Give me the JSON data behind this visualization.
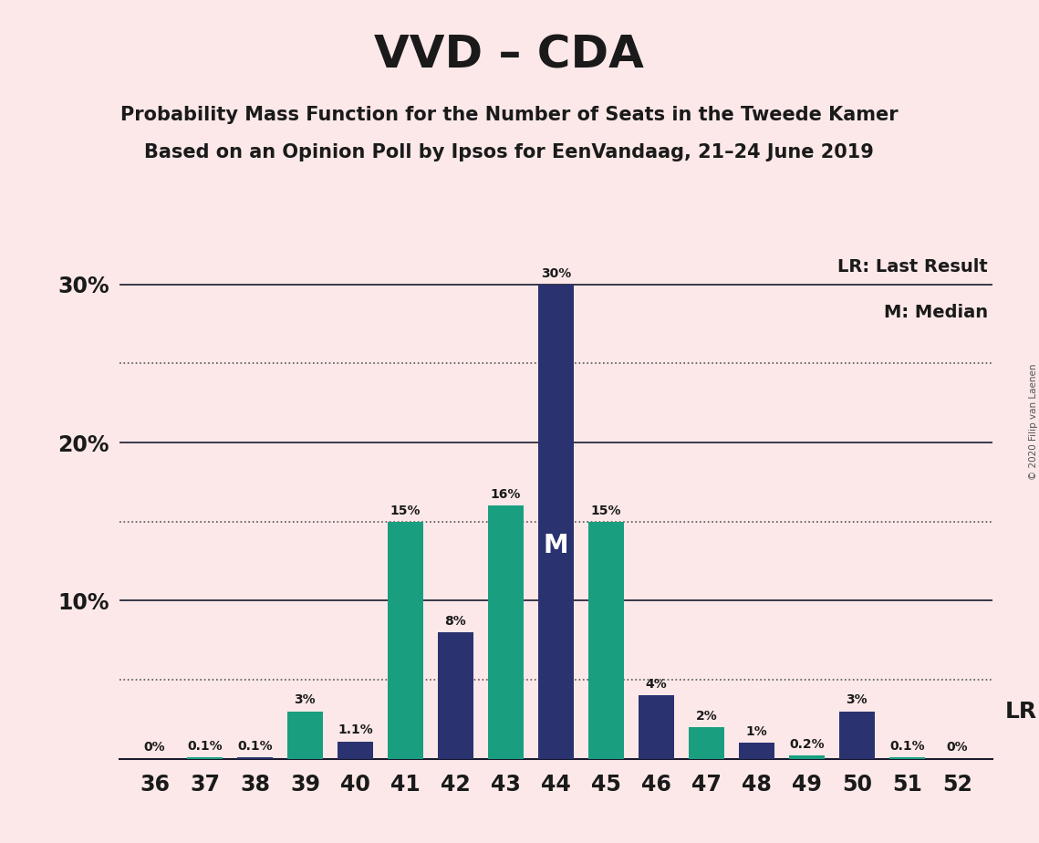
{
  "title": "VVD – CDA",
  "subtitle1": "Probability Mass Function for the Number of Seats in the Tweede Kamer",
  "subtitle2": "Based on an Opinion Poll by Ipsos for EenVandaag, 21–24 June 2019",
  "copyright": "© 2020 Filip van Laenen",
  "seats": [
    36,
    37,
    38,
    39,
    40,
    41,
    42,
    43,
    44,
    45,
    46,
    47,
    48,
    49,
    50,
    51,
    52
  ],
  "probabilities": [
    0.0,
    0.1,
    0.1,
    3.0,
    1.1,
    15.0,
    8.0,
    16.0,
    30.0,
    15.0,
    4.0,
    2.0,
    1.0,
    0.2,
    3.0,
    0.1,
    0.0
  ],
  "bar_colors": [
    "#2b3270",
    "#1a9e80",
    "#2b3270",
    "#1a9e80",
    "#2b3270",
    "#1a9e80",
    "#2b3270",
    "#1a9e80",
    "#2b3270",
    "#1a9e80",
    "#2b3270",
    "#1a9e80",
    "#2b3270",
    "#1a9e80",
    "#2b3270",
    "#1a9e80",
    "#2b3270"
  ],
  "median_seat": 44,
  "lr_seat": 50,
  "lr_label": "LR",
  "lr_legend": "LR: Last Result",
  "m_legend": "M: Median",
  "background_color": "#fce8e8",
  "ylim_max": 32,
  "solid_lines": [
    10,
    20,
    30
  ],
  "dotted_lines": [
    5,
    15,
    25
  ],
  "bar_width": 0.7,
  "label_fontsize": 10,
  "tick_fontsize": 17,
  "title_fontsize": 36,
  "subtitle_fontsize": 15,
  "legend_fontsize": 14
}
